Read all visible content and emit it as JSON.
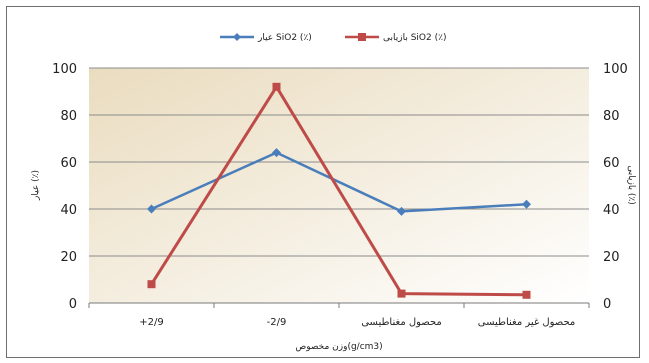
{
  "chart_data": {
    "type": "line",
    "title": "",
    "categories": [
      "+2/9",
      "-2/9",
      "محصول مغناطیسی",
      "محصول غیر مغناطیسی"
    ],
    "xlabel": "وزن مخصوص(g/cm3)",
    "ylabel_left": "عیار (٪)",
    "ylabel_right": "بازیابی (٪)",
    "ylim": [
      0,
      100
    ],
    "yticks": [
      0,
      20,
      40,
      60,
      80,
      100
    ],
    "grid": true,
    "legend_position": "top",
    "series": [
      {
        "name": "عیار SiO2 (٪)",
        "color": "#4a7ebb",
        "marker": "diamond",
        "axis": "left",
        "values": [
          40,
          64,
          39,
          42
        ]
      },
      {
        "name": "بازیابی SiO2 (٪)",
        "color": "#be4b48",
        "marker": "square",
        "axis": "right",
        "values": [
          8,
          92,
          4,
          3.5
        ]
      }
    ]
  }
}
